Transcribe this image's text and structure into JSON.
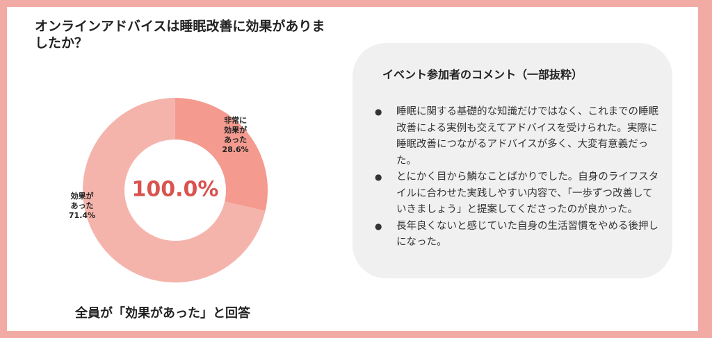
{
  "question": "オンラインアドバイスは睡眠改善に効果がありましたか？",
  "caption": "全員が「効果があった」と回答",
  "colors": {
    "frame": "#f2aba4",
    "slice_very": "#f49a8f",
    "slice_effective": "#f5b4ab",
    "center_text": "#d9534f"
  },
  "chart_data": {
    "type": "pie",
    "variant": "donut",
    "center_label": "100.0%",
    "slices": [
      {
        "label": "非常に効果があった",
        "display_lines": [
          "非常に",
          "効果が",
          "あった",
          "28.6%"
        ],
        "value": 28.6
      },
      {
        "label": "効果があった",
        "display_lines": [
          "効果が",
          "あった",
          "71.4%"
        ],
        "value": 71.4
      }
    ]
  },
  "comments": {
    "title": "イベント参加者のコメント（一部抜粋）",
    "bullet": "●",
    "items": [
      "睡眠に関する基礎的な知識だけではなく、これまでの睡眠改善による実例も交えてアドバイスを受けられた。実際に睡眠改善につながるアドバイスが多く、大変有意義だった。",
      "とにかく目から鱗なことばかりでした。自身のライフスタイルに合わせた実践しやすい内容で、「一歩ずつ改善していきましょう」と提案してくださったのが良かった。",
      "長年良くないと感じていた自身の生活習慣をやめる後押しになった。"
    ]
  }
}
